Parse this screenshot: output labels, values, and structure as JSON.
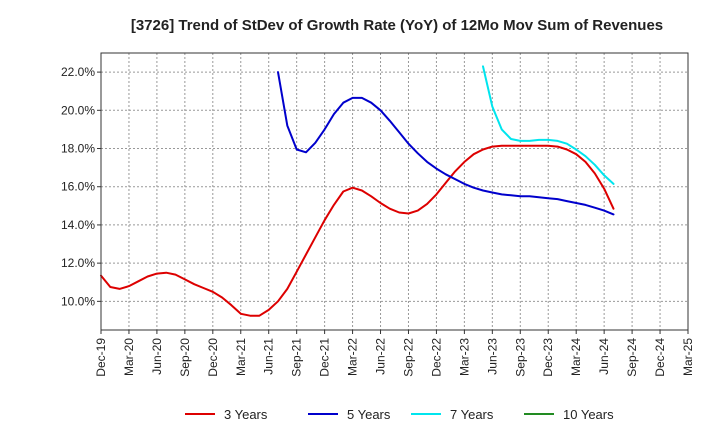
{
  "chart_data": {
    "type": "line",
    "title": "[3726]  Trend of StDev of Growth Rate (YoY) of 12Mo Mov Sum of Revenues",
    "xlabel": "",
    "ylabel": "",
    "x_tick_labels": [
      "Dec-19",
      "Mar-20",
      "Jun-20",
      "Sep-20",
      "Dec-20",
      "Mar-21",
      "Jun-21",
      "Sep-21",
      "Dec-21",
      "Mar-22",
      "Jun-22",
      "Sep-22",
      "Dec-22",
      "Mar-23",
      "Jun-23",
      "Sep-23",
      "Dec-23",
      "Mar-24",
      "Jun-24",
      "Sep-24",
      "Dec-24",
      "Mar-25"
    ],
    "y_tick_labels": [
      "10.0%",
      "12.0%",
      "14.0%",
      "16.0%",
      "18.0%",
      "20.0%",
      "22.0%"
    ],
    "y_ticks": [
      10,
      12,
      14,
      16,
      18,
      20,
      22
    ],
    "ylim": [
      8.5,
      23.0
    ],
    "grid": true,
    "legend_position": "bottom",
    "series": [
      {
        "name": "3 Years",
        "color": "#dd0000",
        "values": [
          11.35,
          10.75,
          10.65,
          10.8,
          11.05,
          11.3,
          11.45,
          11.5,
          11.4,
          11.15,
          10.9,
          10.7,
          10.5,
          10.2,
          9.8,
          9.35,
          9.25,
          9.25,
          9.55,
          10.0,
          10.65,
          11.55,
          12.45,
          13.35,
          14.25,
          15.05,
          15.75,
          15.95,
          15.8,
          15.5,
          15.15,
          14.85,
          14.65,
          14.6,
          14.75,
          15.1,
          15.6,
          16.2,
          16.8,
          17.3,
          17.7,
          17.95,
          18.1,
          18.15,
          18.15,
          18.15,
          18.15,
          18.15,
          18.15,
          18.1,
          17.95,
          17.7,
          17.3,
          16.7,
          15.9,
          14.85
        ]
      },
      {
        "name": "5 Years",
        "color": "#0000cc",
        "values": [
          null,
          null,
          null,
          null,
          null,
          null,
          null,
          null,
          null,
          null,
          null,
          null,
          null,
          null,
          null,
          null,
          null,
          null,
          null,
          22.0,
          19.2,
          17.95,
          17.8,
          18.3,
          19.0,
          19.8,
          20.4,
          20.65,
          20.65,
          20.4,
          20.0,
          19.45,
          18.85,
          18.25,
          17.75,
          17.3,
          16.95,
          16.65,
          16.4,
          16.15,
          15.95,
          15.8,
          15.7,
          15.6,
          15.55,
          15.5,
          15.5,
          15.45,
          15.4,
          15.35,
          15.25,
          15.15,
          15.05,
          14.9,
          14.75,
          14.55
        ]
      },
      {
        "name": "7 Years",
        "color": "#00e5ee",
        "values": [
          null,
          null,
          null,
          null,
          null,
          null,
          null,
          null,
          null,
          null,
          null,
          null,
          null,
          null,
          null,
          null,
          null,
          null,
          null,
          null,
          null,
          null,
          null,
          null,
          null,
          null,
          null,
          null,
          null,
          null,
          null,
          null,
          null,
          null,
          null,
          null,
          null,
          null,
          null,
          null,
          null,
          22.3,
          20.2,
          19.0,
          18.5,
          18.4,
          18.4,
          18.45,
          18.45,
          18.4,
          18.25,
          17.95,
          17.6,
          17.15,
          16.6,
          16.15
        ]
      },
      {
        "name": "10 Years",
        "color": "#228B22",
        "values": []
      }
    ]
  }
}
